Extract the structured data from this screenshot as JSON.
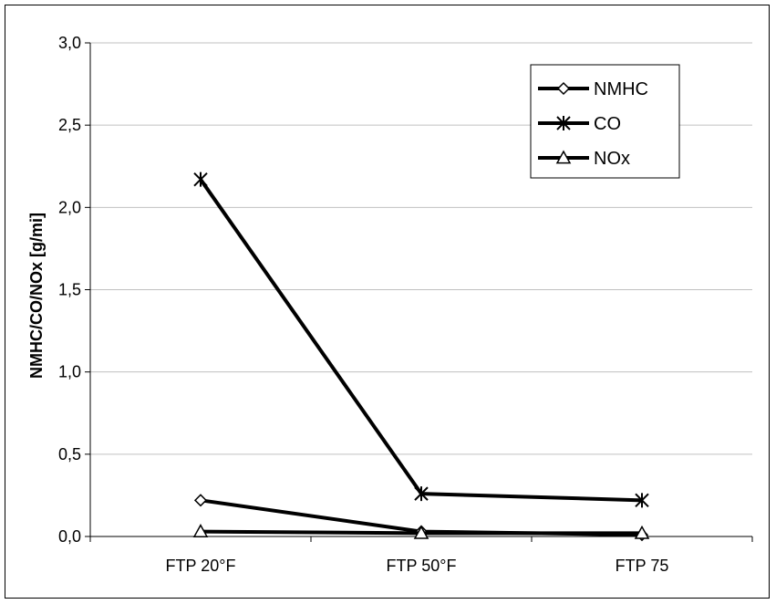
{
  "chart_data": {
    "type": "line",
    "title": "",
    "xlabel": "",
    "ylabel": "NMHC/CO/NOx [g/mi]",
    "ylim": [
      0,
      3.0
    ],
    "yticks": [
      "0,0",
      "0,5",
      "1,0",
      "1,5",
      "2,0",
      "2,5",
      "3,0"
    ],
    "grid": "horizontal",
    "legend_position": "top-right",
    "categories": [
      "FTP 20°F",
      "FTP 50°F",
      "FTP 75"
    ],
    "series": [
      {
        "name": "NMHC",
        "marker": "diamond",
        "color": "#000000",
        "values": [
          0.22,
          0.03,
          0.01
        ]
      },
      {
        "name": "CO",
        "marker": "asterisk",
        "color": "#000000",
        "values": [
          2.17,
          0.26,
          0.22
        ]
      },
      {
        "name": "NOx",
        "marker": "triangle",
        "color": "#000000",
        "values": [
          0.03,
          0.02,
          0.02
        ]
      }
    ]
  }
}
